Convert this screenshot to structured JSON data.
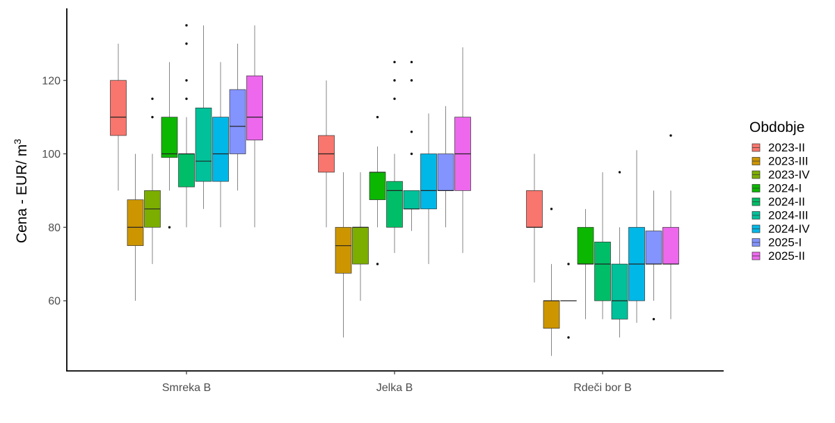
{
  "chart_data": {
    "type": "boxplot",
    "title": "",
    "xlabel": "",
    "ylabel": "Cena - EUR/ m",
    "ylabel_superscript": "3",
    "ylim": [
      40,
      142
    ],
    "yticks": [
      60,
      80,
      100,
      120
    ],
    "grid": false,
    "legend": {
      "title": "Obdobje",
      "position": "right"
    },
    "categories": [
      "Smreka B",
      "Jelka B",
      "Rdeči bor B"
    ],
    "series": [
      {
        "name": "2023-II",
        "color": "#F8766D",
        "boxes": [
          {
            "min": 90,
            "q1": 105,
            "median": 110,
            "q3": 120,
            "max": 130,
            "outliers": []
          },
          {
            "min": 80,
            "q1": 95,
            "median": 100,
            "q3": 105,
            "max": 120,
            "outliers": []
          },
          {
            "min": 65,
            "q1": 80,
            "median": 80,
            "q3": 90,
            "max": 100,
            "outliers": []
          }
        ]
      },
      {
        "name": "2023-III",
        "color": "#CD9600",
        "boxes": [
          {
            "min": 60,
            "q1": 75,
            "median": 80,
            "q3": 87.5,
            "max": 100,
            "outliers": []
          },
          {
            "min": 50,
            "q1": 67.5,
            "median": 75,
            "q3": 80,
            "max": 95,
            "outliers": []
          },
          {
            "min": 45,
            "q1": 52.5,
            "median": 60,
            "q3": 60,
            "max": 70,
            "outliers": [
              85
            ]
          }
        ]
      },
      {
        "name": "2023-IV",
        "color": "#7CAE00",
        "boxes": [
          {
            "min": 70,
            "q1": 80,
            "median": 85,
            "q3": 90,
            "max": 100,
            "outliers": [
              110,
              115
            ]
          },
          {
            "min": 60,
            "q1": 70,
            "median": 80,
            "q3": 80,
            "max": 95,
            "outliers": []
          },
          {
            "min": 60,
            "q1": 60,
            "median": 60,
            "q3": 60,
            "max": 60,
            "outliers": [
              50,
              70
            ]
          }
        ]
      },
      {
        "name": "2024-I",
        "color": "#0CB702",
        "boxes": [
          {
            "min": 90,
            "q1": 99,
            "median": 100,
            "q3": 110,
            "max": 125,
            "outliers": [
              80
            ]
          },
          {
            "min": 80,
            "q1": 87.5,
            "median": 95,
            "q3": 95,
            "max": 102,
            "outliers": [
              70,
              110
            ]
          },
          {
            "min": 55,
            "q1": 70,
            "median": 70,
            "q3": 80,
            "max": 85,
            "outliers": []
          }
        ]
      },
      {
        "name": "2024-II",
        "color": "#00BE67",
        "boxes": [
          {
            "min": 80,
            "q1": 91,
            "median": 100,
            "q3": 100,
            "max": 110,
            "outliers": [
              115,
              120,
              130,
              135
            ]
          },
          {
            "min": 73,
            "q1": 80,
            "median": 90,
            "q3": 92.5,
            "max": 100,
            "outliers": [
              115,
              120,
              125
            ]
          },
          {
            "min": 55,
            "q1": 60,
            "median": 70,
            "q3": 76,
            "max": 95,
            "outliers": []
          }
        ]
      },
      {
        "name": "2024-III",
        "color": "#00C19A",
        "boxes": [
          {
            "min": 85,
            "q1": 92.5,
            "median": 98,
            "q3": 112.5,
            "max": 135,
            "outliers": []
          },
          {
            "min": 79,
            "q1": 85,
            "median": 85,
            "q3": 90,
            "max": 90,
            "outliers": [
              100,
              106,
              120,
              125
            ]
          },
          {
            "min": 50,
            "q1": 55,
            "median": 60,
            "q3": 70,
            "max": 80,
            "outliers": [
              95
            ]
          }
        ]
      },
      {
        "name": "2024-IV",
        "color": "#00B8E7",
        "boxes": [
          {
            "min": 80,
            "q1": 92.5,
            "median": 100,
            "q3": 110,
            "max": 125,
            "outliers": []
          },
          {
            "min": 70,
            "q1": 85,
            "median": 90,
            "q3": 100,
            "max": 111,
            "outliers": []
          },
          {
            "min": 54,
            "q1": 60,
            "median": 70,
            "q3": 80,
            "max": 101,
            "outliers": []
          }
        ]
      },
      {
        "name": "2025-I",
        "color": "#8494FF",
        "boxes": [
          {
            "min": 90,
            "q1": 100,
            "median": 107.5,
            "q3": 117.5,
            "max": 130,
            "outliers": []
          },
          {
            "min": 80,
            "q1": 90,
            "median": 90,
            "q3": 100,
            "max": 113,
            "outliers": []
          },
          {
            "min": 60,
            "q1": 70,
            "median": 70,
            "q3": 79,
            "max": 90,
            "outliers": [
              55
            ]
          }
        ]
      },
      {
        "name": "2025-II",
        "color": "#ED68ED",
        "boxes": [
          {
            "min": 80,
            "q1": 103.75,
            "median": 110,
            "q3": 121.25,
            "max": 135,
            "outliers": []
          },
          {
            "min": 73,
            "q1": 90,
            "median": 100,
            "q3": 110,
            "max": 129,
            "outliers": []
          },
          {
            "min": 55,
            "q1": 70,
            "median": 70,
            "q3": 80,
            "max": 90,
            "outliers": [
              105
            ]
          }
        ]
      }
    ]
  }
}
